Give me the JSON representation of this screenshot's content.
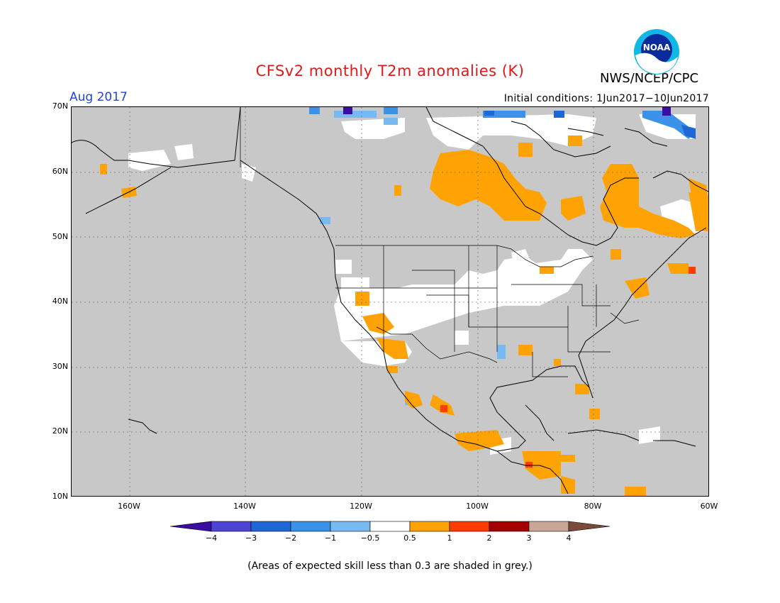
{
  "header": {
    "title": "CFSv2 monthly T2m anomalies (K)",
    "month": "Aug 2017",
    "org": "NWS/NCEP/CPC",
    "initial_conditions": "Initial conditions: 1Jun2017−10Jun2017",
    "logo_text": "NOAA"
  },
  "map": {
    "lat_labels": [
      "70N",
      "60N",
      "50N",
      "40N",
      "30N",
      "20N",
      "10N"
    ],
    "lon_labels": [
      "160W",
      "140W",
      "120W",
      "100W",
      "80W",
      "60W"
    ],
    "lon_range": [
      -170,
      -60
    ],
    "lat_range": [
      10,
      70
    ],
    "skill_mask_color": "#c8c8c8"
  },
  "legend": {
    "labels": [
      "−4",
      "−3",
      "−2",
      "−1",
      "−0.5",
      "0.5",
      "1",
      "2",
      "3",
      "4"
    ],
    "colors": [
      "#3a0da3",
      "#4d44d6",
      "#1f67d6",
      "#3b92e8",
      "#79b9f2",
      "#ffffff",
      "#ffa305",
      "#ff3b00",
      "#a50000",
      "#c9a696",
      "#7b4a3b"
    ]
  },
  "footnote": "(Areas of expected skill less than 0.3 are shaded in grey.)"
}
